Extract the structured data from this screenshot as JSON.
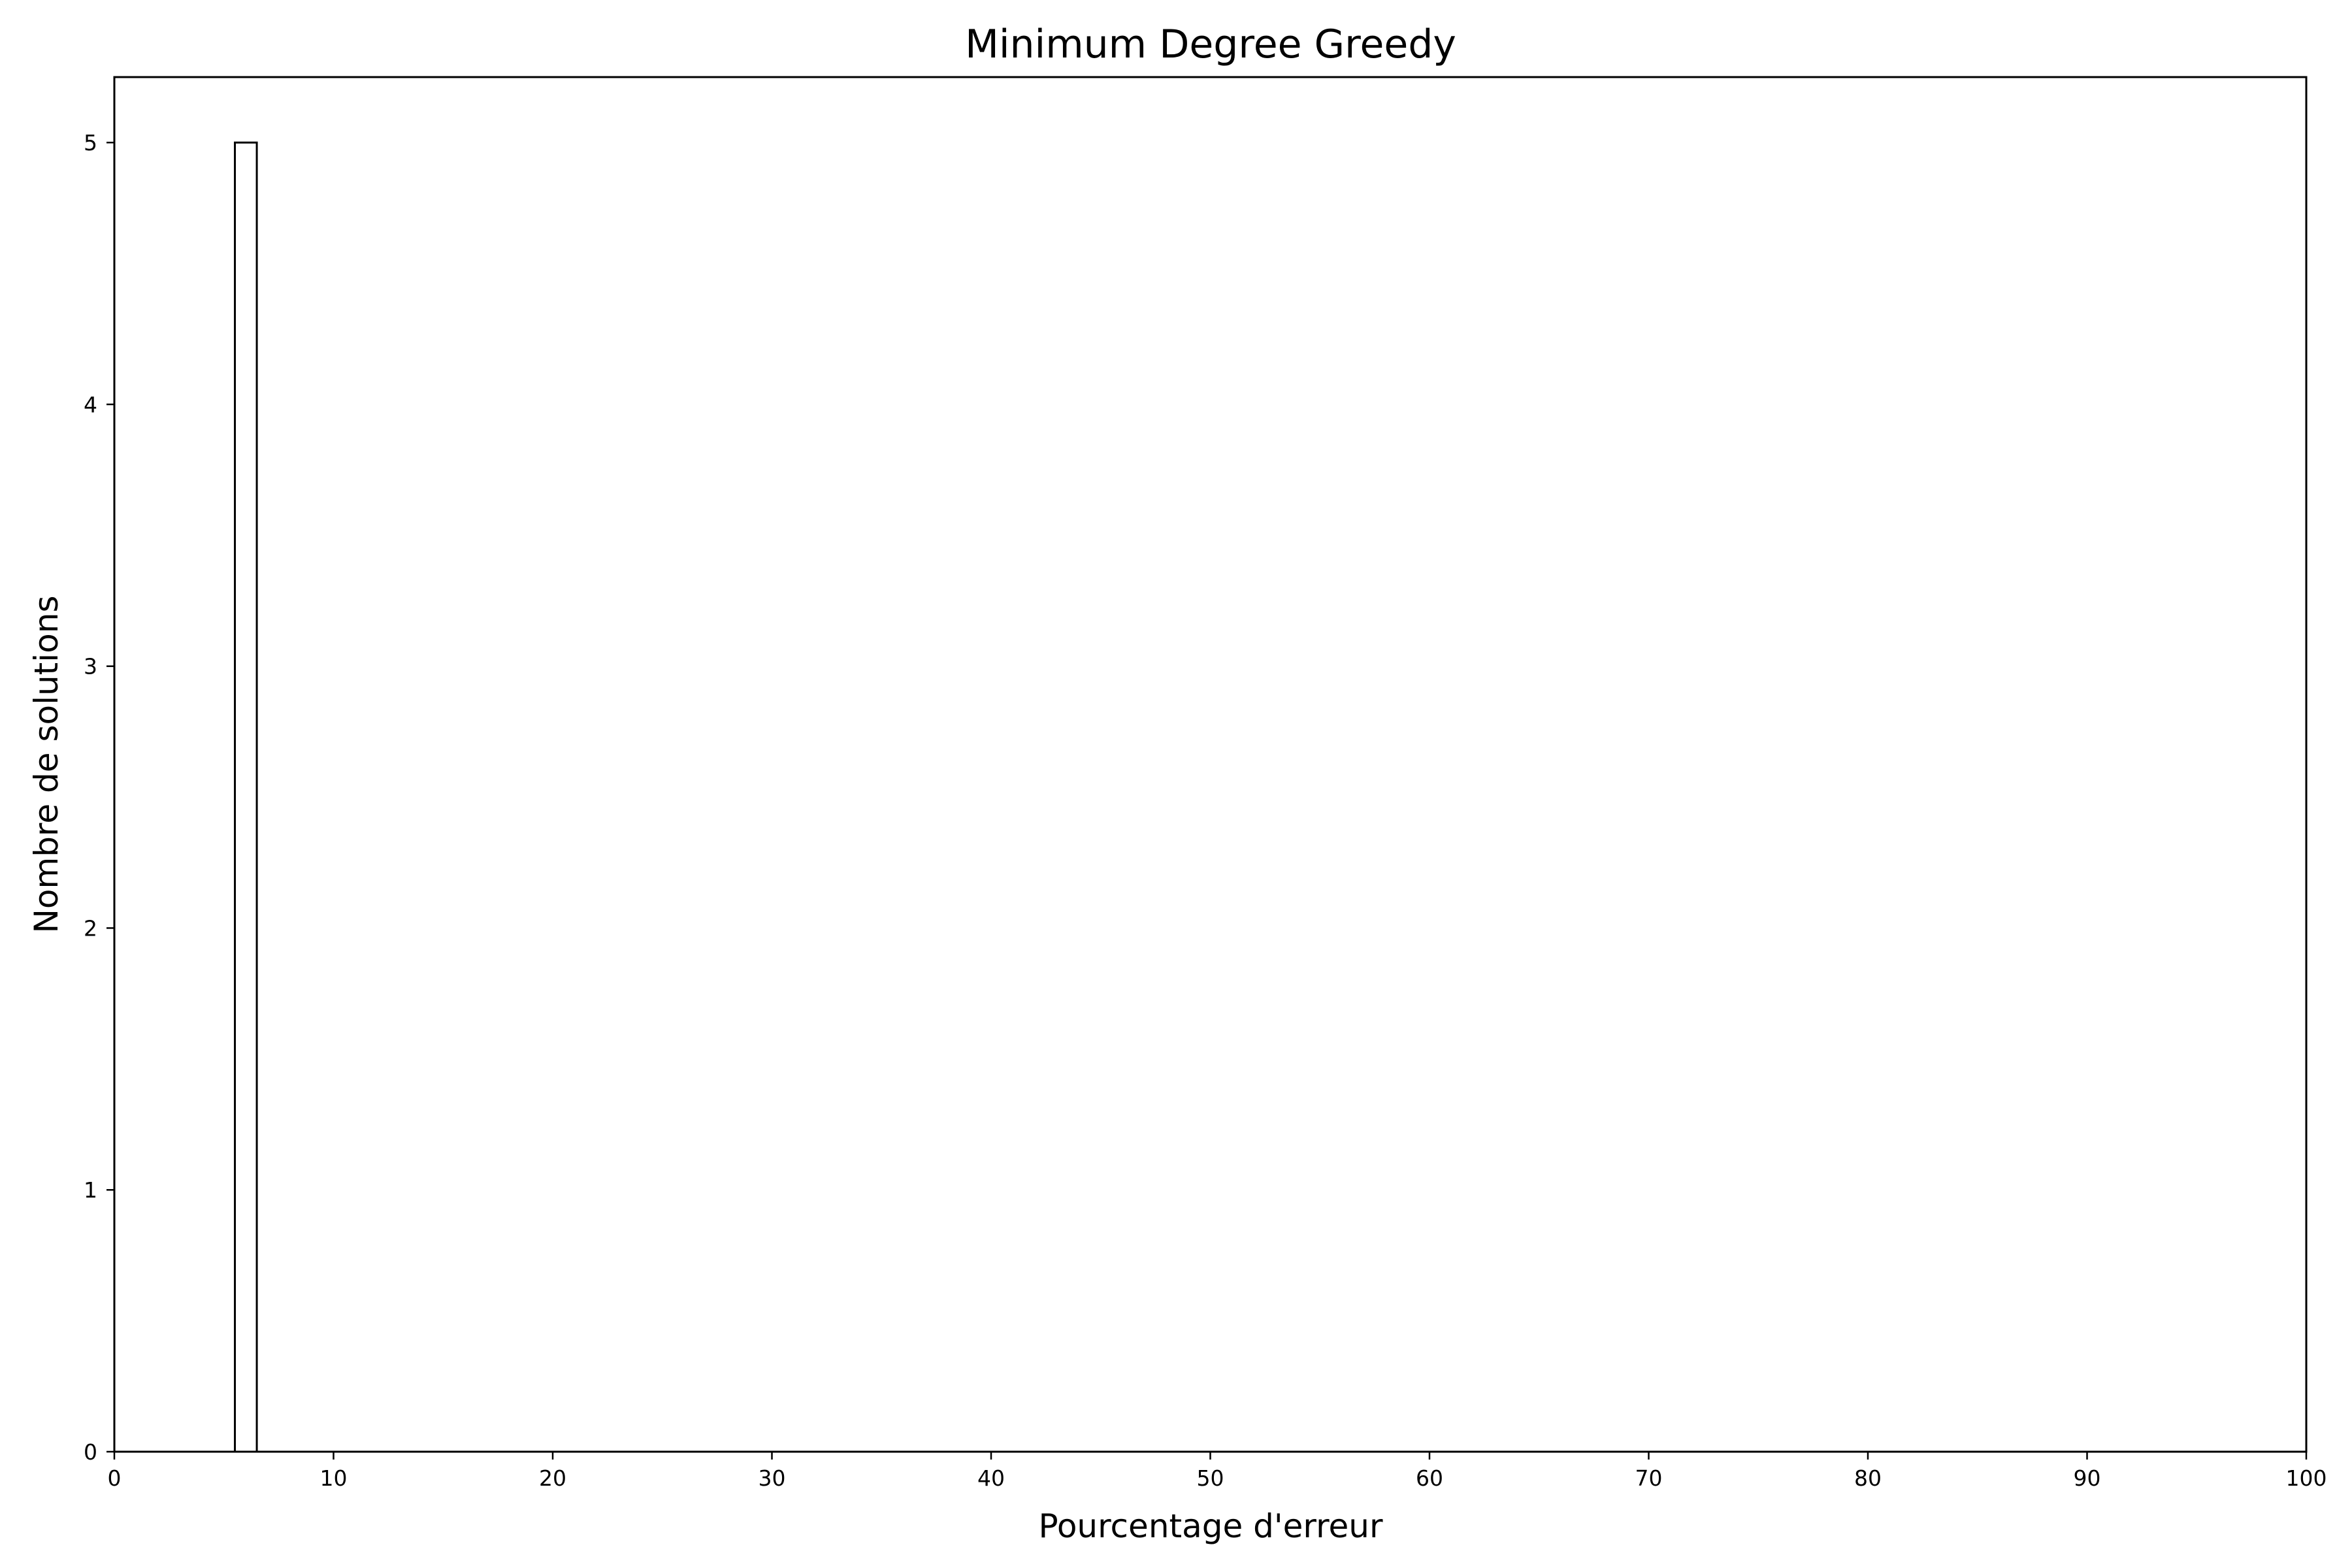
{
  "chart_data": {
    "type": "bar",
    "title": "Minimum Degree Greedy",
    "xlabel": "Pourcentage d'erreur",
    "ylabel": "Nombre de solutions",
    "xlim": [
      0,
      100
    ],
    "ylim": [
      0,
      5.25
    ],
    "xticks": [
      0,
      10,
      20,
      30,
      40,
      50,
      60,
      70,
      80,
      90,
      100
    ],
    "yticks": [
      0,
      1,
      2,
      3,
      4,
      5
    ],
    "grid": false,
    "bars": [
      {
        "x_start": 5.5,
        "x_end": 6.5,
        "value": 5
      }
    ],
    "colors": {
      "bar_fill": "#ffffff",
      "bar_edge": "#000000",
      "axes": "#000000"
    }
  }
}
